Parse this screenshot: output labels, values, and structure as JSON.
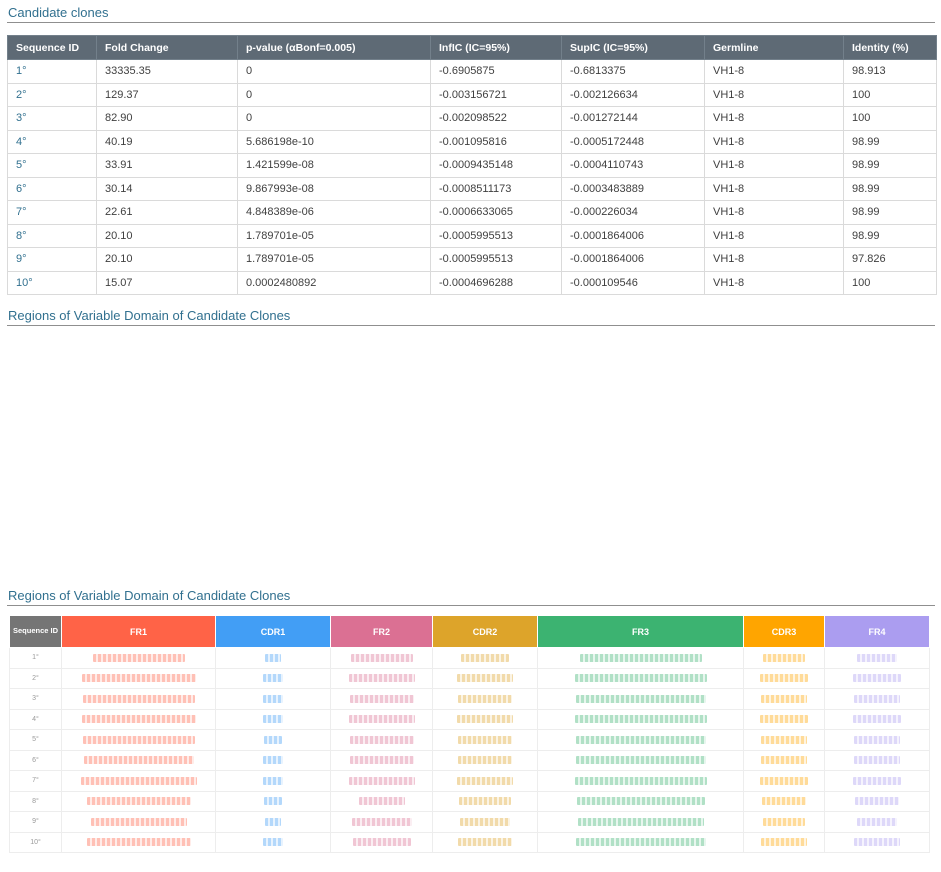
{
  "colors": {
    "heading": "#31708f",
    "link": "#31708f",
    "table-header-bg": "#5e6a75",
    "divider": "#8f8f8f"
  },
  "sections": [
    {
      "title": "Candidate clones"
    },
    {
      "title": "Regions of Variable Domain of Candidate Clones"
    },
    {
      "title": "Regions of Variable Domain of Candidate Clones"
    }
  ],
  "clones_table": {
    "headers": [
      "Sequence ID",
      "Fold Change",
      "p-value (αBonf=0.005)",
      "InfIC (IC=95%)",
      "SupIC (IC=95%)",
      "Germline",
      "Identity (%)"
    ],
    "rows": [
      {
        "id": "1°",
        "fold_change": "33335.35",
        "p_value": "0",
        "inf_ic": "-0.6905875",
        "sup_ic": "-0.6813375",
        "germline": "VH1-8",
        "identity": "98.913"
      },
      {
        "id": "2°",
        "fold_change": "129.37",
        "p_value": "0",
        "inf_ic": "-0.003156721",
        "sup_ic": "-0.002126634",
        "germline": "VH1-8",
        "identity": "100"
      },
      {
        "id": "3°",
        "fold_change": "82.90",
        "p_value": "0",
        "inf_ic": "-0.002098522",
        "sup_ic": "-0.001272144",
        "germline": "VH1-8",
        "identity": "100"
      },
      {
        "id": "4°",
        "fold_change": "40.19",
        "p_value": "5.686198e-10",
        "inf_ic": "-0.001095816",
        "sup_ic": "-0.0005172448",
        "germline": "VH1-8",
        "identity": "98.99"
      },
      {
        "id": "5°",
        "fold_change": "33.91",
        "p_value": "1.421599e-08",
        "inf_ic": "-0.0009435148",
        "sup_ic": "-0.0004110743",
        "germline": "VH1-8",
        "identity": "98.99"
      },
      {
        "id": "6°",
        "fold_change": "30.14",
        "p_value": "9.867993e-08",
        "inf_ic": "-0.0008511173",
        "sup_ic": "-0.0003483889",
        "germline": "VH1-8",
        "identity": "98.99"
      },
      {
        "id": "7°",
        "fold_change": "22.61",
        "p_value": "4.848389e-06",
        "inf_ic": "-0.0006633065",
        "sup_ic": "-0.000226034",
        "germline": "VH1-8",
        "identity": "98.99"
      },
      {
        "id": "8°",
        "fold_change": "20.10",
        "p_value": "1.789701e-05",
        "inf_ic": "-0.0005995513",
        "sup_ic": "-0.0001864006",
        "germline": "VH1-8",
        "identity": "98.99"
      },
      {
        "id": "9°",
        "fold_change": "20.10",
        "p_value": "1.789701e-05",
        "inf_ic": "-0.0005995513",
        "sup_ic": "-0.0001864006",
        "germline": "VH1-8",
        "identity": "97.826"
      },
      {
        "id": "10°",
        "fold_change": "15.07",
        "p_value": "0.0002480892",
        "inf_ic": "-0.0004696288",
        "sup_ic": "-0.000109546",
        "germline": "VH1-8",
        "identity": "100"
      }
    ]
  },
  "regions_table": {
    "id_header": "Sequence ID",
    "region_headers": [
      "FR1",
      "CDR1",
      "FR2",
      "CDR2",
      "FR3",
      "CDR3",
      "FR4"
    ],
    "region_colors": {
      "ID": "#757575",
      "FR1": "#ff6347",
      "CDR1": "#429ef5",
      "FR2": "#db7093",
      "CDR2": "#dda42a",
      "FR3": "#3cb371",
      "CDR3": "#ffa500",
      "FR4": "#ab9df0"
    },
    "rows": [
      {
        "id": "1°",
        "widths": {
          "FR1": 92,
          "CDR1": 16,
          "FR2": 62,
          "CDR2": 48,
          "FR3": 122,
          "CDR3": 42,
          "FR4": 40
        }
      },
      {
        "id": "2°",
        "widths": {
          "FR1": 114,
          "CDR1": 20,
          "FR2": 66,
          "CDR2": 56,
          "FR3": 132,
          "CDR3": 48,
          "FR4": 48
        }
      },
      {
        "id": "3°",
        "widths": {
          "FR1": 112,
          "CDR1": 20,
          "FR2": 64,
          "CDR2": 54,
          "FR3": 130,
          "CDR3": 46,
          "FR4": 46
        }
      },
      {
        "id": "4°",
        "widths": {
          "FR1": 114,
          "CDR1": 20,
          "FR2": 66,
          "CDR2": 56,
          "FR3": 132,
          "CDR3": 48,
          "FR4": 48
        }
      },
      {
        "id": "5°",
        "widths": {
          "FR1": 112,
          "CDR1": 18,
          "FR2": 64,
          "CDR2": 54,
          "FR3": 130,
          "CDR3": 46,
          "FR4": 46
        }
      },
      {
        "id": "6°",
        "widths": {
          "FR1": 110,
          "CDR1": 20,
          "FR2": 64,
          "CDR2": 54,
          "FR3": 130,
          "CDR3": 46,
          "FR4": 46
        }
      },
      {
        "id": "7°",
        "widths": {
          "FR1": 116,
          "CDR1": 20,
          "FR2": 66,
          "CDR2": 56,
          "FR3": 132,
          "CDR3": 48,
          "FR4": 48
        }
      },
      {
        "id": "8°",
        "widths": {
          "FR1": 104,
          "CDR1": 18,
          "FR2": 46,
          "CDR2": 52,
          "FR3": 128,
          "CDR3": 44,
          "FR4": 44
        }
      },
      {
        "id": "9°",
        "widths": {
          "FR1": 96,
          "CDR1": 16,
          "FR2": 60,
          "CDR2": 50,
          "FR3": 126,
          "CDR3": 42,
          "FR4": 40
        }
      },
      {
        "id": "10°",
        "widths": {
          "FR1": 104,
          "CDR1": 20,
          "FR2": 58,
          "CDR2": 54,
          "FR3": 130,
          "CDR3": 46,
          "FR4": 46
        }
      }
    ]
  }
}
